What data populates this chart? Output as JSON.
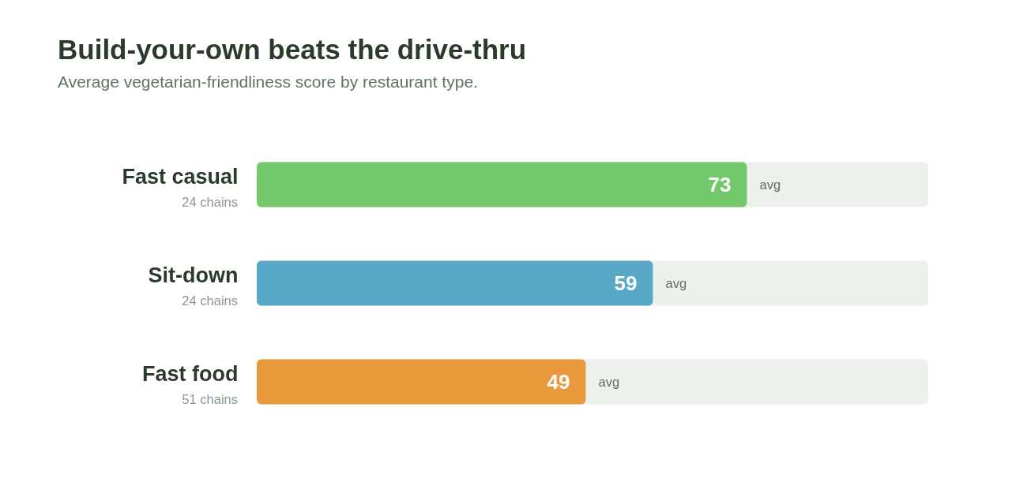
{
  "chart_data": {
    "type": "bar",
    "orientation": "horizontal",
    "title": "Build-your-own beats the drive-thru",
    "subtitle": "Average vegetarian-friendliness score by restaurant type.",
    "categories": [
      "Fast casual",
      "Sit-down",
      "Fast food"
    ],
    "values": [
      73,
      59,
      49
    ],
    "colors": [
      "#73c86b",
      "#5aa8c8",
      "#e89a3c"
    ],
    "xlim": [
      0,
      100
    ],
    "data_labels": true,
    "tick_labels": "y",
    "legend": false,
    "annotations": [
      "24 chains",
      "24 chains",
      "51 chains",
      {
        "text": "avg",
        "x": 73,
        "y": "Fast casual"
      },
      {
        "text": "avg",
        "x": 59,
        "y": "Sit-down"
      },
      {
        "text": "avg",
        "x": 49,
        "y": "Fast food"
      }
    ]
  }
}
